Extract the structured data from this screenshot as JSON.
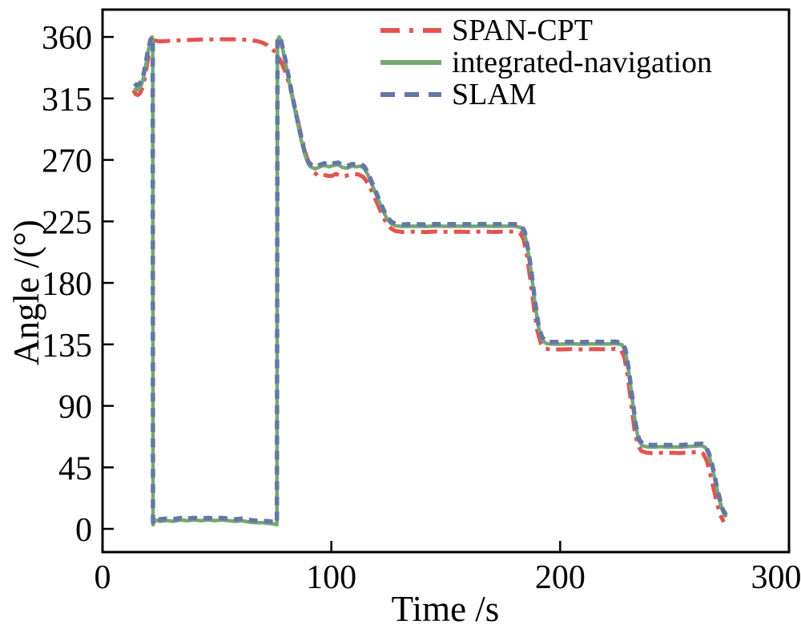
{
  "chart_data": {
    "type": "line",
    "title": "",
    "xlabel": "Time /s",
    "ylabel": "Angle /(°)",
    "xlim": [
      0,
      300
    ],
    "ylim": [
      -17,
      380
    ],
    "x_ticks": [
      0,
      100,
      200,
      300
    ],
    "y_ticks": [
      0,
      45,
      90,
      135,
      180,
      225,
      270,
      315,
      360
    ],
    "grid": false,
    "legend_position": "inside-top-center",
    "axis_color": "#000000",
    "series": [
      {
        "name": "SPAN-CPT",
        "color": "#e4534f",
        "style": "dash_dot",
        "points": [
          [
            13.5,
            321
          ],
          [
            14.5,
            318
          ],
          [
            15.5,
            317.5
          ],
          [
            16.5,
            319
          ],
          [
            17.5,
            323
          ],
          [
            18.5,
            330
          ],
          [
            19.5,
            340
          ],
          [
            20.5,
            350
          ],
          [
            21.3,
            356
          ],
          [
            22.5,
            357.5
          ],
          [
            25,
            356.8
          ],
          [
            28,
            357
          ],
          [
            31,
            357.3
          ],
          [
            35,
            357.6
          ],
          [
            39,
            357.9
          ],
          [
            43,
            358.1
          ],
          [
            47,
            358.2
          ],
          [
            51,
            358.3
          ],
          [
            55,
            358.3
          ],
          [
            59,
            358.2
          ],
          [
            62,
            358
          ],
          [
            65,
            357.6
          ],
          [
            68,
            356.8
          ],
          [
            70,
            355.8
          ],
          [
            72,
            354
          ],
          [
            74,
            351.5
          ],
          [
            76,
            348
          ],
          [
            78,
            342
          ],
          [
            80,
            334
          ],
          [
            82,
            323
          ],
          [
            84,
            309
          ],
          [
            86,
            294
          ],
          [
            88,
            279.5
          ],
          [
            90,
            268
          ],
          [
            92,
            261.5
          ],
          [
            94,
            258.8
          ],
          [
            96,
            259.5
          ],
          [
            98,
            258.5
          ],
          [
            100,
            258.2
          ],
          [
            102,
            259.8
          ],
          [
            104,
            258.3
          ],
          [
            106,
            258.1
          ],
          [
            108,
            259.3
          ],
          [
            110,
            259.6
          ],
          [
            112,
            259.3
          ],
          [
            114,
            257.5
          ],
          [
            116,
            253
          ],
          [
            118,
            246
          ],
          [
            120,
            238.5
          ],
          [
            122,
            230.5
          ],
          [
            124,
            224
          ],
          [
            126,
            220
          ],
          [
            128,
            218
          ],
          [
            131,
            217.3
          ],
          [
            136,
            217.5
          ],
          [
            141,
            217.2
          ],
          [
            146,
            217.6
          ],
          [
            151,
            217.3
          ],
          [
            156,
            217.5
          ],
          [
            161,
            217.3
          ],
          [
            166,
            217.6
          ],
          [
            171,
            217.3
          ],
          [
            176,
            217.5
          ],
          [
            180,
            217.6
          ],
          [
            182.5,
            216.5
          ],
          [
            184,
            212
          ],
          [
            185.5,
            200
          ],
          [
            187,
            182
          ],
          [
            188.5,
            162
          ],
          [
            190,
            145
          ],
          [
            191.5,
            136
          ],
          [
            193,
            132.3
          ],
          [
            195,
            131.5
          ],
          [
            200,
            131.3
          ],
          [
            205,
            131.6
          ],
          [
            210,
            131.3
          ],
          [
            215,
            131.6
          ],
          [
            220,
            131.4
          ],
          [
            224,
            131.7
          ],
          [
            226.5,
            131
          ],
          [
            228,
            126
          ],
          [
            229.5,
            112
          ],
          [
            231,
            92
          ],
          [
            232.5,
            72
          ],
          [
            234,
            61
          ],
          [
            235.5,
            57
          ],
          [
            237.5,
            55.8
          ],
          [
            240,
            55.5
          ],
          [
            243,
            55.8
          ],
          [
            246,
            55.4
          ],
          [
            249,
            55.7
          ],
          [
            252,
            55.4
          ],
          [
            255,
            55.8
          ],
          [
            258,
            56
          ],
          [
            261,
            56.3
          ],
          [
            262.5,
            55
          ],
          [
            264,
            50
          ],
          [
            265.5,
            41
          ],
          [
            267,
            30
          ],
          [
            268.5,
            19
          ],
          [
            270,
            10
          ],
          [
            271.5,
            5
          ]
        ]
      },
      {
        "name": "integrated-navigation",
        "color": "#74a874",
        "style": "solid",
        "points": [
          [
            14,
            323
          ],
          [
            15,
            321
          ],
          [
            16,
            322
          ],
          [
            17,
            325
          ],
          [
            18,
            331
          ],
          [
            19,
            340
          ],
          [
            20,
            350
          ],
          [
            21,
            357
          ],
          [
            21.7,
            360
          ],
          [
            21.95,
            357
          ],
          [
            22.05,
            3
          ],
          [
            23,
            6.5
          ],
          [
            25,
            5.5
          ],
          [
            28,
            6
          ],
          [
            31,
            5.5
          ],
          [
            34,
            6.5
          ],
          [
            37,
            6
          ],
          [
            40,
            6.5
          ],
          [
            43,
            6
          ],
          [
            46,
            6.5
          ],
          [
            49,
            6
          ],
          [
            52,
            6.5
          ],
          [
            55,
            6
          ],
          [
            58,
            5.5
          ],
          [
            61,
            6
          ],
          [
            64,
            5
          ],
          [
            67,
            4.5
          ],
          [
            70,
            4.5
          ],
          [
            73,
            4
          ],
          [
            75,
            3.5
          ],
          [
            76.2,
            3
          ],
          [
            76.45,
            357
          ],
          [
            77.2,
            360
          ],
          [
            78,
            357
          ],
          [
            79,
            349
          ],
          [
            80,
            341
          ],
          [
            81.5,
            328
          ],
          [
            83,
            315
          ],
          [
            85,
            299
          ],
          [
            87,
            283.5
          ],
          [
            88.5,
            273.5
          ],
          [
            90,
            267
          ],
          [
            91.5,
            264.5
          ],
          [
            93,
            263.5
          ],
          [
            95,
            265
          ],
          [
            97,
            266
          ],
          [
            99,
            265
          ],
          [
            101,
            266
          ],
          [
            103,
            266.5
          ],
          [
            105,
            264.5
          ],
          [
            107,
            264
          ],
          [
            109,
            265.5
          ],
          [
            111,
            265
          ],
          [
            113,
            265.5
          ],
          [
            114.5,
            263.5
          ],
          [
            116,
            259
          ],
          [
            118,
            251
          ],
          [
            120,
            243
          ],
          [
            122,
            235
          ],
          [
            124,
            228
          ],
          [
            126,
            223.5
          ],
          [
            128,
            221.8
          ],
          [
            131,
            221.3
          ],
          [
            136,
            221.5
          ],
          [
            141,
            221.3
          ],
          [
            146,
            221.6
          ],
          [
            151,
            221.4
          ],
          [
            156,
            221.5
          ],
          [
            161,
            221.4
          ],
          [
            166,
            221.6
          ],
          [
            171,
            221.4
          ],
          [
            176,
            221.5
          ],
          [
            180,
            221.5
          ],
          [
            183,
            220.5
          ],
          [
            184.5,
            216
          ],
          [
            186,
            203
          ],
          [
            187.5,
            186
          ],
          [
            189,
            165
          ],
          [
            190.5,
            148
          ],
          [
            192,
            139
          ],
          [
            193.5,
            136
          ],
          [
            195,
            135.3
          ],
          [
            200,
            135.2
          ],
          [
            205,
            135.4
          ],
          [
            210,
            135.2
          ],
          [
            215,
            135.4
          ],
          [
            220,
            135.3
          ],
          [
            224,
            135.5
          ],
          [
            227,
            134.8
          ],
          [
            228.5,
            130
          ],
          [
            230,
            115
          ],
          [
            231.5,
            95
          ],
          [
            233,
            75
          ],
          [
            234.5,
            64
          ],
          [
            236,
            60.8
          ],
          [
            238,
            60
          ],
          [
            241,
            59.8
          ],
          [
            244,
            60.2
          ],
          [
            247,
            59.8
          ],
          [
            250,
            60
          ],
          [
            253,
            59.8
          ],
          [
            256,
            60.3
          ],
          [
            259,
            60.5
          ],
          [
            262,
            60.8
          ],
          [
            263.5,
            59.5
          ],
          [
            265,
            54
          ],
          [
            266.5,
            45
          ],
          [
            268,
            33
          ],
          [
            269.5,
            22
          ],
          [
            271,
            13
          ],
          [
            272.5,
            8.5
          ]
        ]
      },
      {
        "name": "SLAM",
        "color": "#6577a7",
        "style": "dashed",
        "points": [
          [
            14,
            326
          ],
          [
            15,
            324.5
          ],
          [
            16,
            325.5
          ],
          [
            17,
            327.5
          ],
          [
            18,
            333
          ],
          [
            19,
            342
          ],
          [
            20,
            351.5
          ],
          [
            21,
            358
          ],
          [
            21.7,
            360
          ],
          [
            21.95,
            357
          ],
          [
            22.05,
            5
          ],
          [
            23,
            8
          ],
          [
            25,
            7
          ],
          [
            28,
            7.5
          ],
          [
            31,
            7
          ],
          [
            34,
            8
          ],
          [
            37,
            7.5
          ],
          [
            40,
            8
          ],
          [
            43,
            7.5
          ],
          [
            46,
            8
          ],
          [
            49,
            7.5
          ],
          [
            52,
            8
          ],
          [
            55,
            7.5
          ],
          [
            58,
            7
          ],
          [
            61,
            7.5
          ],
          [
            64,
            6.5
          ],
          [
            67,
            6
          ],
          [
            70,
            6
          ],
          [
            73,
            5.5
          ],
          [
            75,
            5
          ],
          [
            76.2,
            4.5
          ],
          [
            76.45,
            357
          ],
          [
            77.2,
            360
          ],
          [
            78,
            357.5
          ],
          [
            79,
            350
          ],
          [
            80,
            342.5
          ],
          [
            81.5,
            329.5
          ],
          [
            83,
            316.5
          ],
          [
            85,
            300.5
          ],
          [
            87,
            285
          ],
          [
            88.5,
            275
          ],
          [
            90,
            268.5
          ],
          [
            91.5,
            266
          ],
          [
            93,
            265
          ],
          [
            95,
            266.5
          ],
          [
            97,
            267.5
          ],
          [
            99,
            266.5
          ],
          [
            101,
            267.5
          ],
          [
            103,
            268
          ],
          [
            105,
            266
          ],
          [
            107,
            265.5
          ],
          [
            109,
            267
          ],
          [
            111,
            266.5
          ],
          [
            113,
            267
          ],
          [
            114.5,
            265
          ],
          [
            116,
            260.5
          ],
          [
            118,
            252.5
          ],
          [
            120,
            244.5
          ],
          [
            122,
            236.5
          ],
          [
            124,
            229.5
          ],
          [
            126,
            225
          ],
          [
            128,
            223.3
          ],
          [
            131,
            222.8
          ],
          [
            136,
            223
          ],
          [
            141,
            222.8
          ],
          [
            146,
            223.1
          ],
          [
            151,
            222.9
          ],
          [
            156,
            223
          ],
          [
            161,
            222.9
          ],
          [
            166,
            223.1
          ],
          [
            171,
            222.9
          ],
          [
            176,
            223
          ],
          [
            180,
            223
          ],
          [
            183,
            222
          ],
          [
            184.5,
            217.5
          ],
          [
            186,
            204.5
          ],
          [
            187.5,
            187.5
          ],
          [
            189,
            166.5
          ],
          [
            190.5,
            149.5
          ],
          [
            192,
            140.5
          ],
          [
            193.5,
            137.5
          ],
          [
            195,
            136.8
          ],
          [
            200,
            136.7
          ],
          [
            205,
            136.9
          ],
          [
            210,
            136.7
          ],
          [
            215,
            136.9
          ],
          [
            220,
            136.8
          ],
          [
            224,
            137
          ],
          [
            227,
            136.3
          ],
          [
            228.5,
            131.5
          ],
          [
            230,
            116.5
          ],
          [
            231.5,
            96.5
          ],
          [
            233,
            76.5
          ],
          [
            234.5,
            65.5
          ],
          [
            236,
            62.3
          ],
          [
            238,
            61.5
          ],
          [
            241,
            61.3
          ],
          [
            244,
            61.7
          ],
          [
            247,
            61.3
          ],
          [
            250,
            61.5
          ],
          [
            253,
            61.3
          ],
          [
            256,
            61.8
          ],
          [
            259,
            62
          ],
          [
            262,
            62.3
          ],
          [
            263.5,
            61
          ],
          [
            265,
            55.5
          ],
          [
            266.5,
            46.5
          ],
          [
            268,
            34.5
          ],
          [
            269.5,
            23.5
          ],
          [
            271,
            14.5
          ],
          [
            272.5,
            10
          ]
        ]
      }
    ]
  }
}
